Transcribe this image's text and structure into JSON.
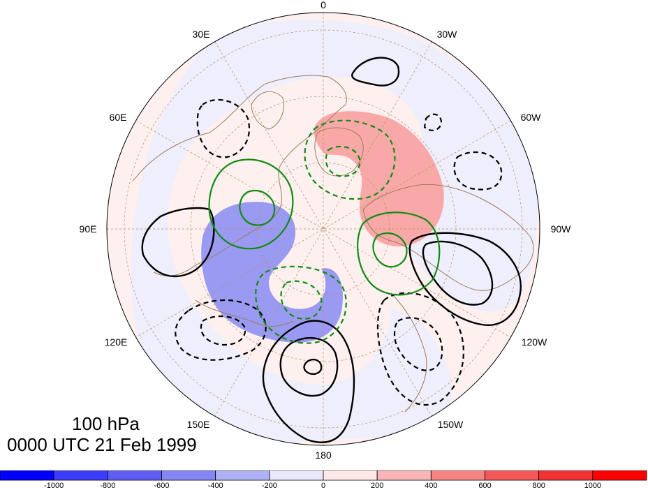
{
  "map": {
    "level": "100 hPa",
    "datetime": "0000 UTC 21 Feb 1999",
    "longitude_labels": {
      "lon_0": "0",
      "lon_30w": "30W",
      "lon_60w": "60W",
      "lon_90w": "90W",
      "lon_120w": "120W",
      "lon_150w": "150W",
      "lon_180": "180",
      "lon_150e": "150E",
      "lon_120e": "120E",
      "lon_90e": "90E",
      "lon_60e": "60E",
      "lon_30e": "30E"
    },
    "colors": {
      "positive_fill": "#f9a8a8",
      "negative_fill": "#9a9af2",
      "weak_positive": "#fdf0ee",
      "weak_negative": "#eeeefc",
      "coastline": "#9b7b5c",
      "contour_black": "#000000",
      "contour_green": "#118a11"
    }
  },
  "colorbar": {
    "tick_labels": [
      "-1000",
      "-800",
      "-600",
      "-400",
      "-200",
      "0",
      "200",
      "400",
      "600",
      "800",
      "1000"
    ],
    "colors": [
      "#0000ff",
      "#3c3cfa",
      "#5e5ef6",
      "#8585f4",
      "#b0b0f6",
      "#e8e8fc",
      "#fde8e6",
      "#f8b6b6",
      "#f58484",
      "#f25858",
      "#ef3232",
      "#ff0000"
    ]
  }
}
